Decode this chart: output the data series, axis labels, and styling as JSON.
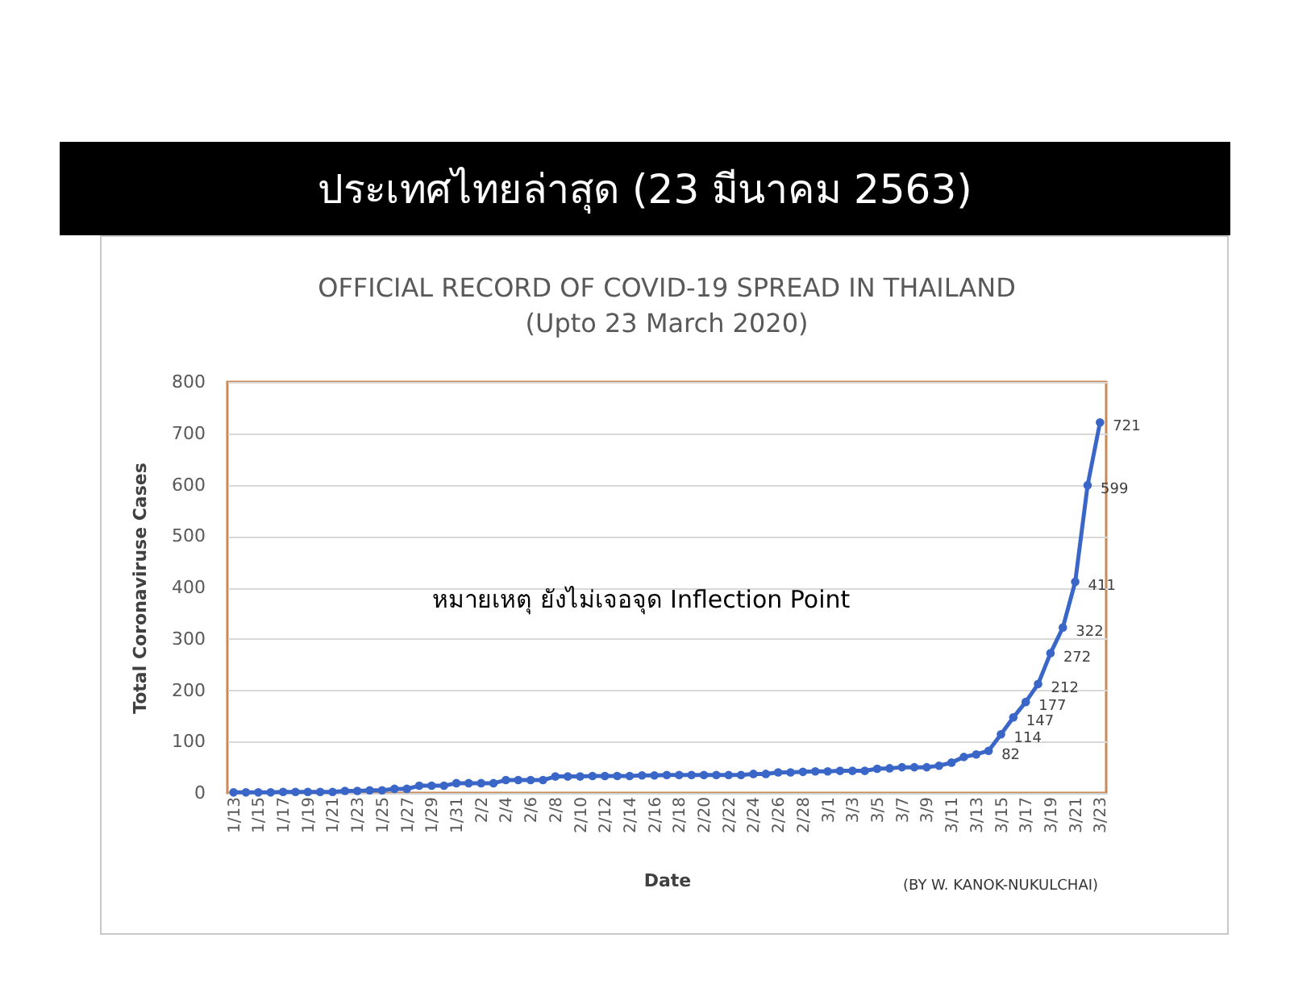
{
  "chart_data": {
    "type": "line",
    "title": "OFFICIAL RECORD OF COVID-19 SPREAD IN THAILAND",
    "subtitle": "(Upto 23 March 2020)",
    "xlabel": "Date",
    "ylabel": "Total Coronaviruse Cases",
    "annotations": [
      "ประเทศไทยล่าสุด (23 มีนาคม 2563)",
      "หมายเหตุ ยังไม่เจอจุด Inflection Point",
      "(BY W. KANOK-NUKULCHAI)"
    ],
    "categories": [
      "1/13",
      null,
      "1/15",
      null,
      "1/17",
      null,
      "1/19",
      null,
      "1/21",
      null,
      "1/23",
      null,
      "1/25",
      null,
      "1/27",
      null,
      "1/29",
      null,
      "1/31",
      null,
      "2/2",
      null,
      "2/4",
      null,
      "2/6",
      null,
      "2/8",
      null,
      "2/10",
      null,
      "2/12",
      null,
      "2/14",
      null,
      "2/16",
      null,
      "2/18",
      null,
      "2/20",
      null,
      "2/22",
      null,
      "2/24",
      null,
      "2/26",
      null,
      "2/28",
      null,
      "3/1",
      null,
      "3/3",
      null,
      "3/5",
      null,
      "3/7",
      null,
      "3/9",
      null,
      "3/11",
      null,
      "3/13",
      null,
      "3/15",
      null,
      "3/17",
      null,
      "3/19",
      null,
      "3/21",
      null,
      "3/23"
    ],
    "series": [
      {
        "color": "#3a66c8",
        "values": [
          1,
          1,
          1,
          1,
          2,
          2,
          2,
          2,
          2,
          4,
          4,
          5,
          5,
          8,
          8,
          14,
          14,
          14,
          19,
          19,
          19,
          19,
          25,
          25,
          25,
          25,
          32,
          32,
          32,
          33,
          33,
          33,
          33,
          34,
          34,
          35,
          35,
          35,
          35,
          35,
          35,
          35,
          37,
          37,
          40,
          40,
          41,
          42,
          42,
          43,
          43,
          43,
          47,
          48,
          50,
          50,
          50,
          53,
          59,
          70,
          75,
          82,
          114,
          147,
          177,
          212,
          272,
          322,
          411,
          599,
          721
        ],
        "value_labels": [
          null,
          null,
          null,
          null,
          null,
          null,
          null,
          null,
          null,
          null,
          null,
          null,
          null,
          null,
          null,
          null,
          null,
          null,
          null,
          null,
          null,
          null,
          null,
          null,
          null,
          null,
          null,
          null,
          null,
          null,
          null,
          null,
          null,
          null,
          null,
          null,
          null,
          null,
          null,
          null,
          null,
          null,
          null,
          null,
          null,
          null,
          null,
          null,
          null,
          null,
          null,
          null,
          null,
          null,
          null,
          null,
          null,
          null,
          null,
          null,
          null,
          "82",
          "114",
          "147",
          "177",
          "212",
          "272",
          "322",
          "411",
          "599",
          "721"
        ]
      }
    ],
    "ylim": [
      0,
      800
    ],
    "yticks": [
      0,
      100,
      200,
      300,
      400,
      500,
      600,
      700,
      800
    ],
    "grid": "y",
    "marker": "circle",
    "line_style": "solid"
  }
}
